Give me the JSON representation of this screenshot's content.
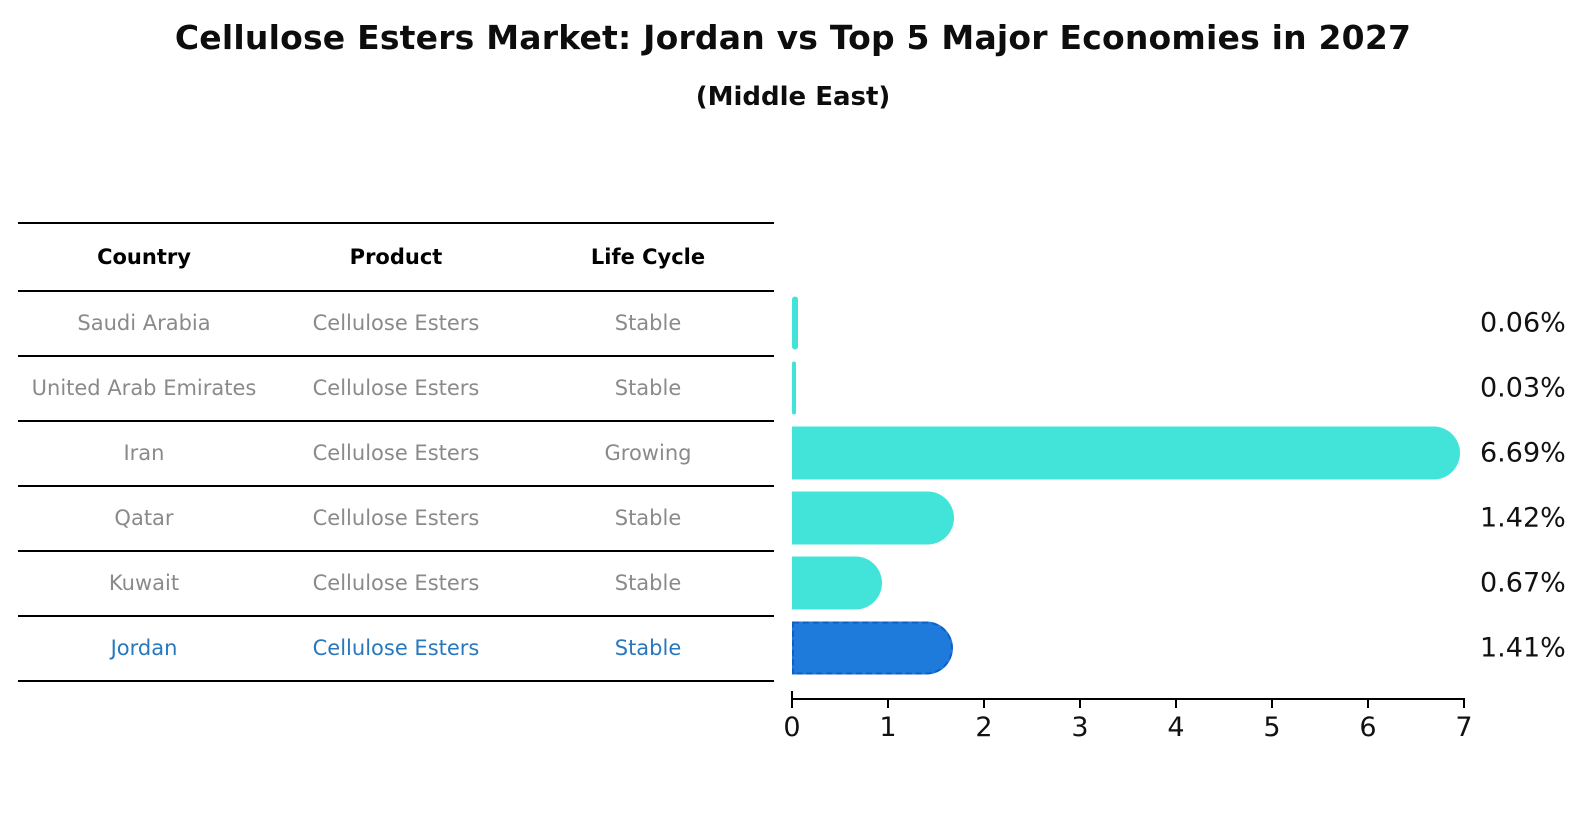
{
  "chart": {
    "title": "Cellulose Esters Market: Jordan vs Top 5 Major Economies in 2027",
    "subtitle": "(Middle East)"
  },
  "chart_data": {
    "type": "bar",
    "orientation": "horizontal",
    "title": "Cellulose Esters Market: Jordan vs Top 5 Major Economies in 2027",
    "subtitle": "(Middle East)",
    "table_columns": [
      "Country",
      "Product",
      "Life Cycle"
    ],
    "rows": [
      {
        "country": "Saudi Arabia",
        "product": "Cellulose Esters",
        "life_cycle": "Stable",
        "value": 0.06,
        "label": "0.06%",
        "highlight": false
      },
      {
        "country": "United Arab Emirates",
        "product": "Cellulose Esters",
        "life_cycle": "Stable",
        "value": 0.03,
        "label": "0.03%",
        "highlight": false
      },
      {
        "country": "Iran",
        "product": "Cellulose Esters",
        "life_cycle": "Growing",
        "value": 6.69,
        "label": "6.69%",
        "highlight": false
      },
      {
        "country": "Qatar",
        "product": "Cellulose Esters",
        "life_cycle": "Stable",
        "value": 1.42,
        "label": "1.42%",
        "highlight": false
      },
      {
        "country": "Kuwait",
        "product": "Cellulose Esters",
        "life_cycle": "Stable",
        "value": 0.67,
        "label": "0.67%",
        "highlight": false
      },
      {
        "country": "Jordan",
        "product": "Cellulose Esters",
        "life_cycle": "Stable",
        "value": 1.41,
        "label": "1.41%",
        "highlight": true
      }
    ],
    "x_axis": {
      "min": 0,
      "max": 7,
      "ticks": [
        "0",
        "1",
        "2",
        "3",
        "4",
        "5",
        "6",
        "7"
      ],
      "grid": false
    },
    "legend": "none",
    "colors": {
      "bar": "#42e4d9",
      "highlight_bar": "#1e7bdc",
      "highlight_bar_border": "#0e5fc5",
      "highlight_text": "#2878be",
      "cell_text": "#8a8a8a",
      "header_text": "#000000",
      "value_text": "#111111",
      "axis": "#000000"
    }
  }
}
